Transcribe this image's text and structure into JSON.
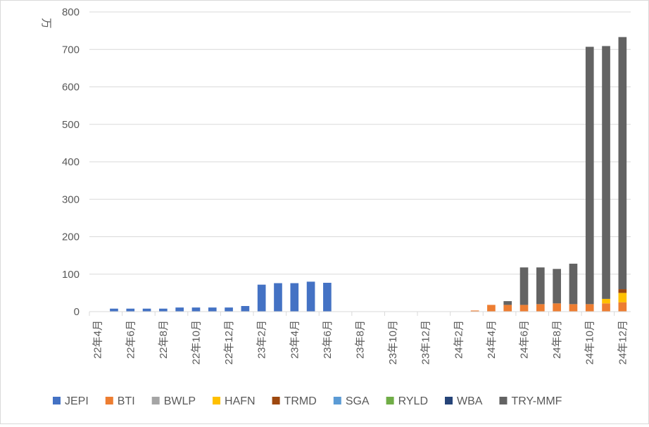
{
  "chart_data": {
    "type": "bar",
    "stacked": true,
    "ylabel": "万",
    "ylim": [
      0,
      800
    ],
    "yticks": [
      0,
      100,
      200,
      300,
      400,
      500,
      600,
      700,
      800
    ],
    "grid": true,
    "legend_position": "bottom",
    "categories": [
      "22年4月",
      "22年5月",
      "22年6月",
      "22年7月",
      "22年8月",
      "22年9月",
      "22年10月",
      "22年11月",
      "22年12月",
      "23年1月",
      "23年2月",
      "23年3月",
      "23年4月",
      "23年5月",
      "23年6月",
      "23年7月",
      "23年8月",
      "23年9月",
      "23年10月",
      "23年11月",
      "23年12月",
      "24年1月",
      "24年2月",
      "24年3月",
      "24年4月",
      "24年5月",
      "24年6月",
      "24年7月",
      "24年8月",
      "24年9月",
      "24年10月",
      "24年11月",
      "24年12月"
    ],
    "xtick_labels": [
      "22年4月",
      "22年6月",
      "22年8月",
      "22年10月",
      "22年12月",
      "23年2月",
      "23年4月",
      "23年6月",
      "23年8月",
      "23年10月",
      "23年12月",
      "24年2月",
      "24年4月",
      "24年6月",
      "24年8月",
      "24年10月",
      "24年12月"
    ],
    "series": [
      {
        "name": "JEPI",
        "color": "#4472c4",
        "values": [
          0,
          8,
          8,
          8,
          8,
          11,
          11,
          11,
          11,
          15,
          72,
          76,
          76,
          80,
          77,
          0,
          0,
          0,
          0,
          0,
          0,
          0,
          0,
          0,
          0,
          0,
          0,
          0,
          0,
          0,
          0,
          0,
          0
        ]
      },
      {
        "name": "BTI",
        "color": "#ed7d31",
        "values": [
          0,
          0,
          0,
          0,
          0,
          0,
          0,
          0,
          0,
          0,
          0,
          0,
          0,
          0,
          0,
          0,
          0,
          0,
          0,
          0,
          0,
          0,
          0,
          3,
          18,
          18,
          18,
          20,
          22,
          20,
          20,
          22,
          25
        ]
      },
      {
        "name": "BWLP",
        "color": "#a5a5a5",
        "values": [
          0,
          0,
          0,
          0,
          0,
          0,
          0,
          0,
          0,
          0,
          0,
          0,
          0,
          0,
          0,
          0,
          0,
          0,
          0,
          0,
          0,
          0,
          0,
          0,
          0,
          0,
          0,
          0,
          0,
          0,
          0,
          0,
          0
        ]
      },
      {
        "name": "HAFN",
        "color": "#ffc000",
        "values": [
          0,
          0,
          0,
          0,
          0,
          0,
          0,
          0,
          0,
          0,
          0,
          0,
          0,
          0,
          0,
          0,
          0,
          0,
          0,
          0,
          0,
          0,
          0,
          0,
          0,
          0,
          0,
          0,
          0,
          0,
          0,
          12,
          25
        ]
      },
      {
        "name": "TRMD",
        "color": "#9e480e",
        "values": [
          0,
          0,
          0,
          0,
          0,
          0,
          0,
          0,
          0,
          0,
          0,
          0,
          0,
          0,
          0,
          0,
          0,
          0,
          0,
          0,
          0,
          0,
          0,
          0,
          0,
          0,
          0,
          0,
          0,
          0,
          0,
          0,
          10
        ]
      },
      {
        "name": "SGA",
        "color": "#5b9bd5",
        "values": [
          0,
          0,
          0,
          0,
          0,
          0,
          0,
          0,
          0,
          0,
          0,
          0,
          0,
          0,
          0,
          0,
          0,
          0,
          0,
          0,
          0,
          0,
          0,
          0,
          0,
          0,
          0,
          0,
          0,
          0,
          0,
          0,
          0
        ]
      },
      {
        "name": "RYLD",
        "color": "#70ad47",
        "values": [
          0,
          0,
          0,
          0,
          0,
          0,
          0,
          0,
          0,
          0,
          0,
          0,
          0,
          0,
          0,
          0,
          0,
          0,
          0,
          0,
          0,
          0,
          0,
          0,
          0,
          0,
          0,
          0,
          0,
          0,
          0,
          0,
          0
        ]
      },
      {
        "name": "WBA",
        "color": "#264478",
        "values": [
          0,
          0,
          0,
          0,
          0,
          0,
          0,
          0,
          0,
          0,
          0,
          0,
          0,
          0,
          0,
          0,
          0,
          0,
          0,
          0,
          0,
          0,
          0,
          0,
          0,
          0,
          0,
          0,
          0,
          0,
          0,
          0,
          0
        ]
      },
      {
        "name": "TRY-MMF",
        "color": "#636363",
        "values": [
          0,
          0,
          0,
          0,
          0,
          0,
          0,
          0,
          0,
          0,
          0,
          0,
          0,
          0,
          0,
          0,
          0,
          0,
          0,
          0,
          0,
          0,
          0,
          0,
          0,
          10,
          100,
          98,
          92,
          108,
          687,
          675,
          673
        ]
      }
    ]
  }
}
